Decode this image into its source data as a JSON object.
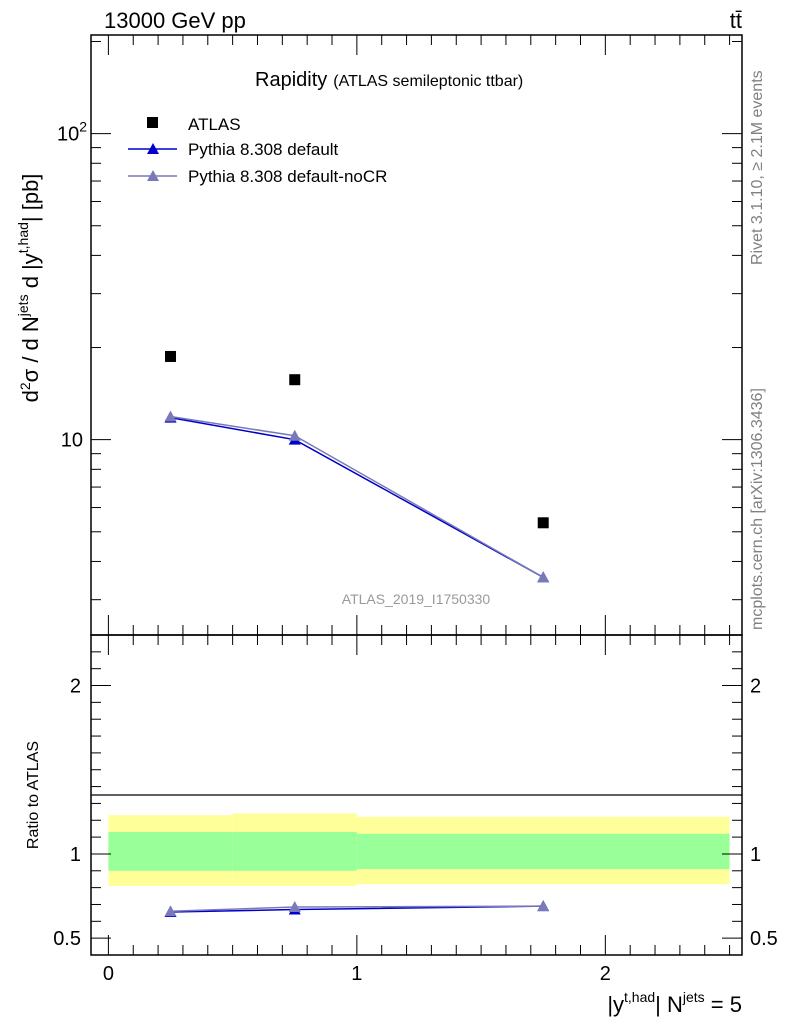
{
  "header": {
    "left": "13000 GeV pp",
    "right": "tt̄"
  },
  "side_labels": {
    "rivet": "Rivet 3.1.10, ≥ 2.1M events",
    "mcplots": "mcplots.cern.ch [arXiv:1306.3436]"
  },
  "watermark": "ATLAS_2019_I1750330",
  "main_plot": {
    "title": "Rapidity",
    "subtitle": "(ATLAS semileptonic ttbar)",
    "ylabel": "d²σ / d N^jets d |y^t,had| [pb]",
    "yscale": "log",
    "ylim": [
      2.3,
      210
    ],
    "yticks": [
      {
        "value": 10,
        "label": "10"
      },
      {
        "value": 100,
        "label": "10^2"
      }
    ]
  },
  "ratio_plot": {
    "ylabel": "Ratio to ATLAS",
    "ylim": [
      0.4,
      2.3
    ],
    "yticks": [
      {
        "value": 0.5,
        "label": "0.5"
      },
      {
        "value": 1,
        "label": "1"
      },
      {
        "value": 2,
        "label": "2"
      }
    ]
  },
  "xaxis": {
    "label": "|y^t,had| N^jets = 5",
    "xlim": [
      -0.07,
      2.55
    ],
    "ticks": [
      {
        "value": 0,
        "label": "0"
      },
      {
        "value": 1,
        "label": "1"
      },
      {
        "value": 2,
        "label": "2"
      }
    ]
  },
  "legend": {
    "placement": "top-left",
    "entries": [
      "ATLAS",
      "Pythia 8.308 default",
      "Pythia 8.308 default-noCR"
    ]
  },
  "colors": {
    "atlas": "#000000",
    "default": "#0000cc",
    "nocr": "#7a7ab8",
    "band_inner": "#99ff99",
    "band_outer": "#ffff99"
  },
  "chart_data": {
    "type": "scatter",
    "x": [
      0.25,
      0.75,
      1.75
    ],
    "bins": [
      [
        0,
        0.5
      ],
      [
        0.5,
        1.0
      ],
      [
        1.0,
        2.5
      ]
    ],
    "series": [
      {
        "name": "ATLAS",
        "values": [
          18.7,
          15.7,
          5.35
        ]
      },
      {
        "name": "Pythia 8.308 default",
        "values": [
          11.8,
          10.0,
          3.55
        ]
      },
      {
        "name": "Pythia 8.308 default-noCR",
        "values": [
          11.9,
          10.3,
          3.55
        ]
      }
    ],
    "ratio": [
      {
        "name": "Pythia 8.308 default",
        "values": [
          0.655,
          0.67,
          0.69
        ]
      },
      {
        "name": "Pythia 8.308 default-noCR",
        "values": [
          0.66,
          0.685,
          0.69
        ]
      }
    ],
    "ratio_band": [
      {
        "bin": [
          0,
          0.5
        ],
        "inner": [
          0.9,
          1.13
        ],
        "outer": [
          0.81,
          1.23
        ]
      },
      {
        "bin": [
          0.5,
          1.0
        ],
        "inner": [
          0.9,
          1.13
        ],
        "outer": [
          0.81,
          1.24
        ]
      },
      {
        "bin": [
          1.0,
          2.5
        ],
        "inner": [
          0.91,
          1.12
        ],
        "outer": [
          0.82,
          1.22
        ]
      }
    ]
  }
}
